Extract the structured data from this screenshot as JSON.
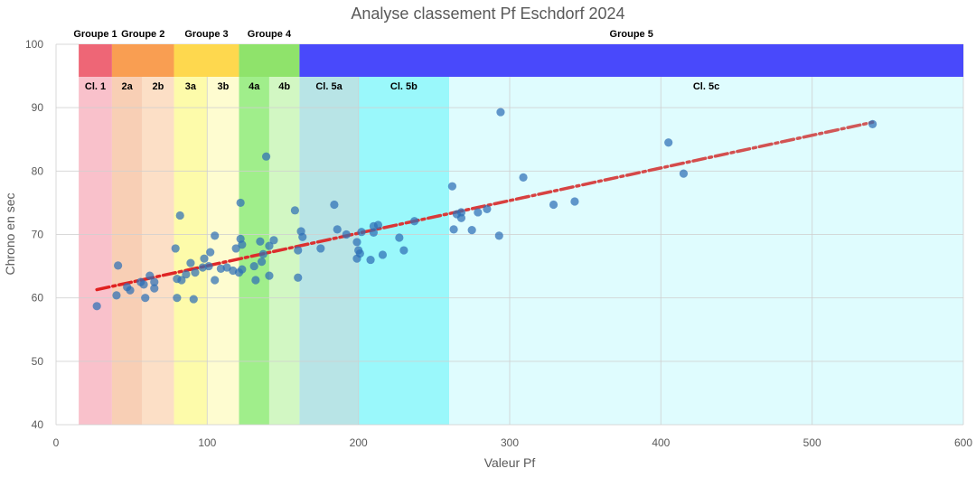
{
  "chart_data": {
    "type": "scatter",
    "title": "Analyse classement Pf Eschdorf 2024",
    "xlabel": "Valeur Pf",
    "ylabel": "Chrono en sec",
    "xlim": [
      0,
      600
    ],
    "ylim": [
      40,
      100
    ],
    "x_ticks": [
      "0",
      "100",
      "200",
      "300",
      "400",
      "500",
      "600"
    ],
    "y_ticks": [
      "40",
      "50",
      "60",
      "70",
      "80",
      "90",
      "100"
    ],
    "grid": true,
    "groups": [
      {
        "label": "Groupe 1",
        "x0": 15,
        "x1": 37,
        "color": "#ee6676"
      },
      {
        "label": "Groupe 2",
        "x0": 37,
        "x1": 78,
        "color": "#f99e52"
      },
      {
        "label": "Groupe 3",
        "x0": 78,
        "x1": 121,
        "color": "#fed84e"
      },
      {
        "label": "Groupe 4",
        "x0": 121,
        "x1": 161,
        "color": "#8fe36b"
      },
      {
        "label": "Groupe 5",
        "x0": 161,
        "x1": 600,
        "color": "#4949fb"
      }
    ],
    "classes": [
      {
        "label": "Cl. 1",
        "x0": 15,
        "x1": 37,
        "color": "#f9c1cb"
      },
      {
        "label": "2a",
        "x0": 37,
        "x1": 57,
        "color": "#f8cfb5"
      },
      {
        "label": "2b",
        "x0": 57,
        "x1": 78,
        "color": "#fcdfc6"
      },
      {
        "label": "3a",
        "x0": 78,
        "x1": 100,
        "color": "#fdfbaa"
      },
      {
        "label": "3b",
        "x0": 100,
        "x1": 121,
        "color": "#fefcd0"
      },
      {
        "label": "4a",
        "x0": 121,
        "x1": 141,
        "color": "#a0ee8b"
      },
      {
        "label": "4b",
        "x0": 141,
        "x1": 161,
        "color": "#d2f7c3"
      },
      {
        "label": "Cl. 5a",
        "x0": 161,
        "x1": 200,
        "color": "#b8e4e6"
      },
      {
        "label": "Cl. 5b",
        "x0": 200,
        "x1": 260,
        "color": "#9af8fb"
      },
      {
        "label": "Cl. 5c",
        "x0": 260,
        "x1": 600,
        "color": "#dffcfe"
      }
    ],
    "points": [
      [
        27,
        58.7
      ],
      [
        40,
        60.4
      ],
      [
        41,
        65.1
      ],
      [
        47,
        61.7
      ],
      [
        49,
        61.2
      ],
      [
        56,
        62.5
      ],
      [
        58,
        62.1
      ],
      [
        59,
        60.0
      ],
      [
        62,
        63.5
      ],
      [
        65,
        62.5
      ],
      [
        65,
        61.5
      ],
      [
        79,
        67.8
      ],
      [
        80,
        63.0
      ],
      [
        80,
        60.0
      ],
      [
        82,
        73.0
      ],
      [
        83,
        62.8
      ],
      [
        86,
        63.7
      ],
      [
        89,
        65.5
      ],
      [
        91,
        59.8
      ],
      [
        92,
        64.0
      ],
      [
        97,
        64.8
      ],
      [
        98,
        66.2
      ],
      [
        101,
        65.0
      ],
      [
        102,
        67.2
      ],
      [
        105,
        62.8
      ],
      [
        105,
        69.8
      ],
      [
        109,
        64.6
      ],
      [
        113,
        64.8
      ],
      [
        117,
        64.3
      ],
      [
        119,
        67.8
      ],
      [
        121,
        64.0
      ],
      [
        122,
        75.0
      ],
      [
        122,
        69.3
      ],
      [
        123,
        68.4
      ],
      [
        123,
        64.5
      ],
      [
        131,
        65.0
      ],
      [
        132,
        62.8
      ],
      [
        135,
        68.9
      ],
      [
        136,
        65.7
      ],
      [
        137,
        66.9
      ],
      [
        139,
        82.3
      ],
      [
        141,
        63.5
      ],
      [
        141,
        68.2
      ],
      [
        144,
        69.1
      ],
      [
        158,
        73.8
      ],
      [
        160,
        63.2
      ],
      [
        160,
        67.5
      ],
      [
        162,
        70.5
      ],
      [
        163,
        69.6
      ],
      [
        175,
        67.8
      ],
      [
        184,
        74.7
      ],
      [
        186,
        70.8
      ],
      [
        192,
        70.0
      ],
      [
        199,
        68.8
      ],
      [
        199,
        66.2
      ],
      [
        200,
        67.5
      ],
      [
        201,
        67.0
      ],
      [
        202,
        70.4
      ],
      [
        208,
        66.0
      ],
      [
        210,
        71.3
      ],
      [
        210,
        70.3
      ],
      [
        213,
        71.5
      ],
      [
        216,
        66.8
      ],
      [
        227,
        69.5
      ],
      [
        230,
        67.5
      ],
      [
        237,
        72.1
      ],
      [
        262,
        77.6
      ],
      [
        263,
        70.8
      ],
      [
        265,
        73.2
      ],
      [
        268,
        73.5
      ],
      [
        268,
        72.6
      ],
      [
        275,
        70.7
      ],
      [
        279,
        73.5
      ],
      [
        285,
        74.0
      ],
      [
        293,
        69.8
      ],
      [
        294,
        89.3
      ],
      [
        309,
        79.0
      ],
      [
        329,
        74.7
      ],
      [
        343,
        75.2
      ],
      [
        405,
        84.5
      ],
      [
        415,
        79.6
      ],
      [
        540,
        87.4
      ]
    ],
    "trendline": {
      "x0": 27,
      "y0": 61.3,
      "x1": 540,
      "y1": 87.7
    }
  }
}
